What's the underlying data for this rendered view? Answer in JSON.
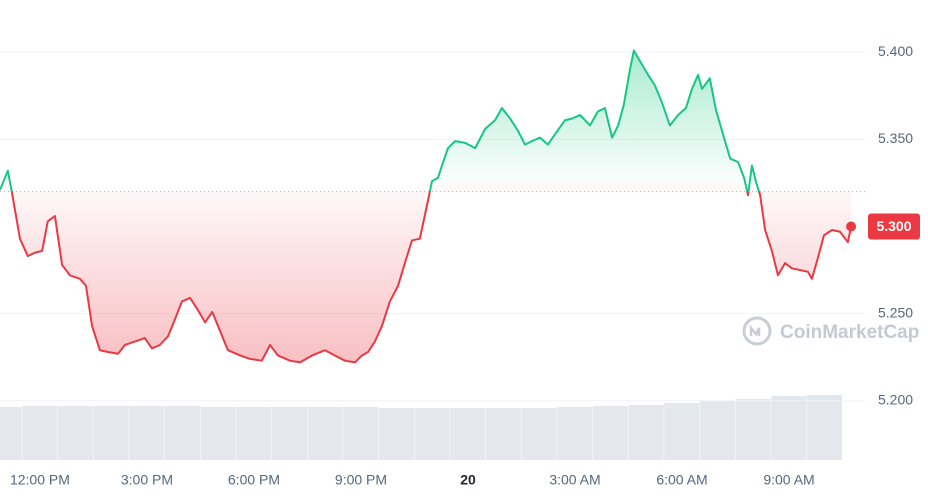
{
  "chart_data": {
    "type": "line",
    "x": [
      10.88,
      11.1,
      11.21,
      11.44,
      11.66,
      11.86,
      12.06,
      12.22,
      12.42,
      12.62,
      12.84,
      13.12,
      13.29,
      13.46,
      13.68,
      13.91,
      14.19,
      14.38,
      14.66,
      14.94,
      15.14,
      15.36,
      15.59,
      15.79,
      15.98,
      16.21,
      16.43,
      16.63,
      16.83,
      17.05,
      17.27,
      17.61,
      17.89,
      18.22,
      18.45,
      18.67,
      19.01,
      19.29,
      19.63,
      19.99,
      20.27,
      20.55,
      20.83,
      21.03,
      21.2,
      21.39,
      21.59,
      21.81,
      22.04,
      22.23,
      22.43,
      22.65,
      22.88,
      22.99,
      23.16,
      23.27,
      23.44,
      23.64,
      23.92,
      24.2,
      24.48,
      24.76,
      24.95,
      25.18,
      25.4,
      25.6,
      25.79,
      26.02,
      26.24,
      26.44,
      26.72,
      26.92,
      27.14,
      27.42,
      27.64,
      27.84,
      28.04,
      28.21,
      28.37,
      28.54,
      28.65,
      28.82,
      29.05,
      29.24,
      29.44,
      29.66,
      29.89,
      30.11,
      30.28,
      30.45,
      30.56,
      30.78,
      30.95,
      31.12,
      31.35,
      31.57,
      31.74,
      31.85,
      31.96,
      32.07,
      32.19,
      32.33,
      32.52,
      32.69,
      32.89,
      33.08,
      33.31,
      33.53,
      33.64,
      33.81,
      33.98,
      34.21,
      34.43,
      34.65,
      34.74
    ],
    "series": [
      {
        "values": [
          5.321,
          5.332,
          5.32,
          5.293,
          5.283,
          5.285,
          5.286,
          5.303,
          5.306,
          5.278,
          5.272,
          5.27,
          5.266,
          5.243,
          5.229,
          5.228,
          5.227,
          5.232,
          5.234,
          5.236,
          5.23,
          5.232,
          5.237,
          5.247,
          5.257,
          5.259,
          5.252,
          5.245,
          5.251,
          5.24,
          5.229,
          5.226,
          5.224,
          5.223,
          5.232,
          5.226,
          5.223,
          5.222,
          5.226,
          5.229,
          5.226,
          5.223,
          5.222,
          5.226,
          5.228,
          5.234,
          5.243,
          5.257,
          5.266,
          5.279,
          5.292,
          5.293,
          5.315,
          5.326,
          5.328,
          5.335,
          5.345,
          5.349,
          5.348,
          5.345,
          5.356,
          5.361,
          5.368,
          5.362,
          5.355,
          5.347,
          5.349,
          5.351,
          5.347,
          5.353,
          5.361,
          5.362,
          5.364,
          5.358,
          5.366,
          5.368,
          5.351,
          5.358,
          5.37,
          5.39,
          5.401,
          5.395,
          5.387,
          5.381,
          5.371,
          5.358,
          5.364,
          5.368,
          5.379,
          5.387,
          5.379,
          5.385,
          5.367,
          5.355,
          5.339,
          5.337,
          5.328,
          5.318,
          5.335,
          5.326,
          5.318,
          5.298,
          5.286,
          5.272,
          5.279,
          5.276,
          5.275,
          5.274,
          5.27,
          5.282,
          5.295,
          5.298,
          5.297,
          5.291,
          5.3
        ]
      }
    ],
    "baseline": 5.32,
    "up_color": "#16c784",
    "down_color": "#ea3943",
    "last_value_label": "5.300",
    "xlim": [
      10.88,
      35.13
    ],
    "ylim": [
      5.166,
      5.43
    ],
    "xticks": [
      {
        "value": 12,
        "label": "12:00 PM"
      },
      {
        "value": 15,
        "label": "3:00 PM"
      },
      {
        "value": 18,
        "label": "6:00 PM"
      },
      {
        "value": 21,
        "label": "9:00 PM"
      },
      {
        "value": 24,
        "label": "20"
      },
      {
        "value": 27,
        "label": "3:00 AM"
      },
      {
        "value": 30,
        "label": "6:00 AM"
      },
      {
        "value": 33,
        "label": "9:00 AM"
      }
    ],
    "yticks": [
      {
        "value": 5.2,
        "label": "5.200"
      },
      {
        "value": 5.25,
        "label": "5.250"
      },
      {
        "value": 5.35,
        "label": "5.350"
      },
      {
        "value": 5.4,
        "label": "5.400"
      }
    ],
    "grid": true,
    "volume": {
      "x": [
        11,
        12,
        13,
        14,
        15,
        16,
        17,
        18,
        19,
        20,
        21,
        22,
        23,
        24,
        25,
        26,
        27,
        28,
        29,
        30,
        31,
        32,
        33,
        34
      ],
      "values": [
        53,
        54,
        54,
        54,
        54,
        54,
        53,
        53,
        53,
        53,
        53,
        52,
        52,
        52,
        52,
        52,
        53,
        54,
        55,
        57,
        59,
        61,
        64,
        65
      ],
      "ylim": [
        0,
        75
      ],
      "color": "#e4e7ec"
    },
    "watermark": "CoinMarketCap"
  }
}
